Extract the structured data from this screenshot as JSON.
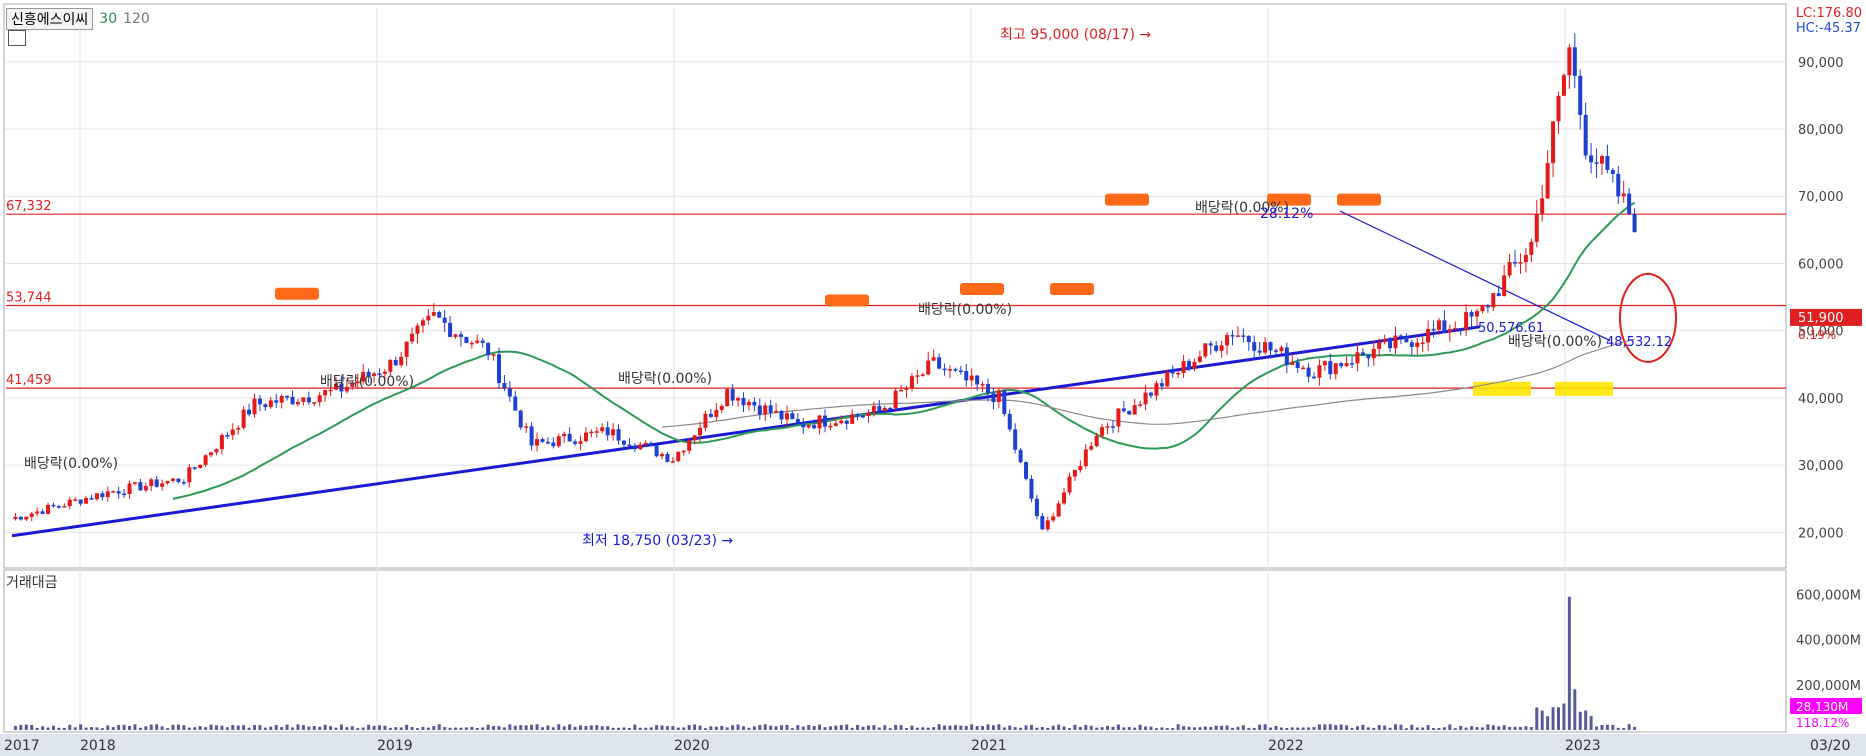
{
  "header": {
    "stock_name": "신흥에스이씨",
    "ma_short": "30",
    "ma_long": "120",
    "lc_label": "LC:176.80",
    "hc_label": "HC:-45.37"
  },
  "sub_panel_title": "거래대금",
  "colors": {
    "up": "#e21a1a",
    "down": "#1f3fd1",
    "ma30": "#2e9a57",
    "ma120": "#8a8a8a",
    "hline": "#e02020",
    "trend": "#1a1ad4",
    "highlight_orange": "#ff6a1a",
    "highlight_yellow": "#ffe400",
    "volume": "#5a5a9a",
    "vol_last": "#ff00ff"
  },
  "chart_data": {
    "type": "candlestick",
    "ylim": [
      15000,
      98000
    ],
    "y_ticks": [
      "90,000",
      "80,000",
      "70,000",
      "60,000",
      "50,000",
      "40,000",
      "30,000",
      "20,000"
    ],
    "x_labels": [
      "2017",
      "2018",
      "2019",
      "2020",
      "2021",
      "2022",
      "2023",
      "03/20"
    ],
    "horizontal_levels": [
      {
        "value": 67332,
        "label": "67,332"
      },
      {
        "value": 53744,
        "label": "53,744"
      },
      {
        "value": 41459,
        "label": "41,459"
      }
    ],
    "current_price": {
      "value": 51900,
      "label": "51,900",
      "change": "0.19%"
    },
    "annotations": {
      "high": "최고 95,000 (08/17)",
      "low": "최저 18,750 (03/23)",
      "dividend_labels": [
        "배당락(0.00%)",
        "배당락(0.00%)",
        "배당락(0.00%)",
        "배당락(0.00%)",
        "배당락(0.00%)",
        "배당락(0.00%)"
      ],
      "pct_label": "28.12%",
      "trend_value_a": "50,576.61",
      "trend_value_b": "48,532.12"
    },
    "volume_panel": {
      "y_ticks": [
        "600,000M",
        "400,000M",
        "200,000M"
      ],
      "last_value": "28,130M",
      "last_pct": "118.12%"
    },
    "candle_count": 300
  }
}
